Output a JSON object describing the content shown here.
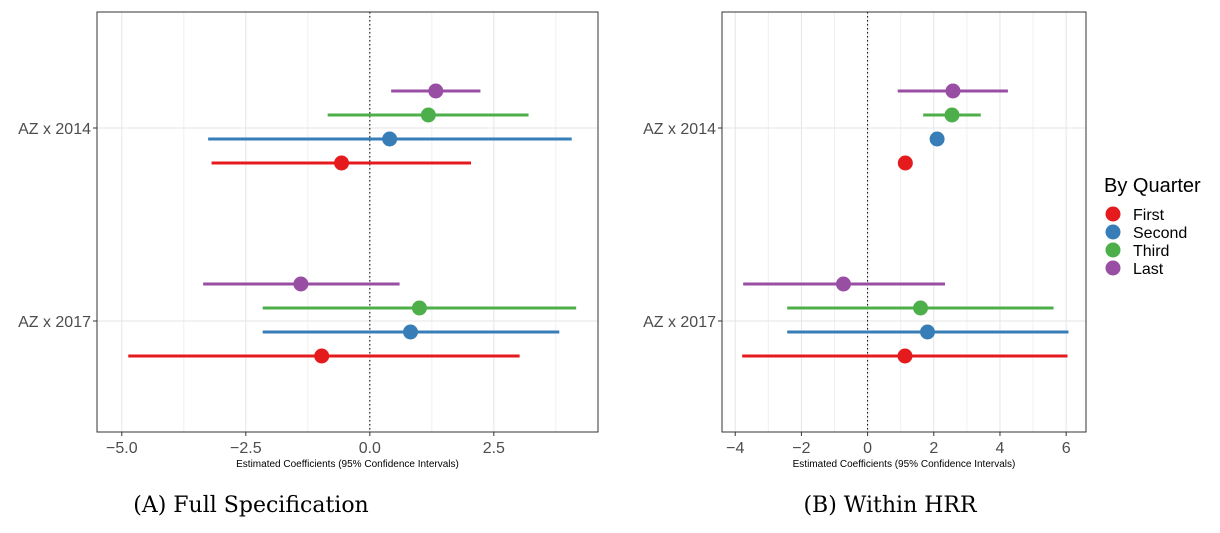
{
  "chart_data": [
    {
      "type": "scatter",
      "panel": "A",
      "caption": "(A) Full Specification",
      "xlabel": "Estimated Coefficients (95% Confidence Intervals)",
      "xlim": [
        -5.5,
        4.6
      ],
      "xticks": [
        -5.0,
        -2.5,
        0.0,
        2.5
      ],
      "xtick_labels": [
        "−5.0",
        "−2.5",
        "0.0",
        "2.5"
      ],
      "reference_line": 0,
      "categories": [
        "AZ x 2014",
        "AZ x 2017"
      ],
      "series": [
        {
          "name": "First",
          "estimates": [
            -0.57,
            -0.97
          ],
          "lower": [
            -3.19,
            -4.87
          ],
          "upper": [
            2.04,
            3.02
          ]
        },
        {
          "name": "Second",
          "estimates": [
            0.4,
            0.82
          ],
          "lower": [
            -3.26,
            -2.16
          ],
          "upper": [
            4.07,
            3.82
          ]
        },
        {
          "name": "Third",
          "estimates": [
            1.18,
            1.0
          ],
          "lower": [
            -0.85,
            -2.16
          ],
          "upper": [
            3.2,
            4.16
          ]
        },
        {
          "name": "Last",
          "estimates": [
            1.33,
            -1.39
          ],
          "lower": [
            0.43,
            -3.36
          ],
          "upper": [
            2.23,
            0.6
          ]
        }
      ],
      "grid": true
    },
    {
      "type": "scatter",
      "panel": "B",
      "caption": "(B) Within HRR",
      "xlabel": "Estimated Coefficients (95% Confidence Intervals)",
      "xlim": [
        -4.4,
        6.6
      ],
      "xticks": [
        -4,
        -2,
        0,
        2,
        4,
        6
      ],
      "xtick_labels": [
        "−4",
        "−2",
        "0",
        "2",
        "4",
        "6"
      ],
      "reference_line": 0,
      "categories": [
        "AZ x 2014",
        "AZ x 2017"
      ],
      "series": [
        {
          "name": "First",
          "estimates": [
            1.14,
            1.13
          ],
          "lower": [
            1.14,
            -3.79
          ],
          "upper": [
            1.14,
            6.04
          ]
        },
        {
          "name": "Second",
          "estimates": [
            2.1,
            1.81
          ],
          "lower": [
            2.1,
            -2.43
          ],
          "upper": [
            2.1,
            6.07
          ]
        },
        {
          "name": "Third",
          "estimates": [
            2.55,
            1.6
          ],
          "lower": [
            1.68,
            -2.43
          ],
          "upper": [
            3.42,
            5.62
          ]
        },
        {
          "name": "Last",
          "estimates": [
            2.58,
            -0.73
          ],
          "lower": [
            0.91,
            -3.76
          ],
          "upper": [
            4.24,
            2.34
          ]
        }
      ],
      "grid": true
    }
  ],
  "legend": {
    "title": "By Quarter",
    "placement": "right",
    "entries": [
      {
        "label": "First",
        "color": "#e41a1c"
      },
      {
        "label": "Second",
        "color": "#377eb8"
      },
      {
        "label": "Third",
        "color": "#4daf4a"
      },
      {
        "label": "Last",
        "color": "#984ea3"
      }
    ]
  }
}
